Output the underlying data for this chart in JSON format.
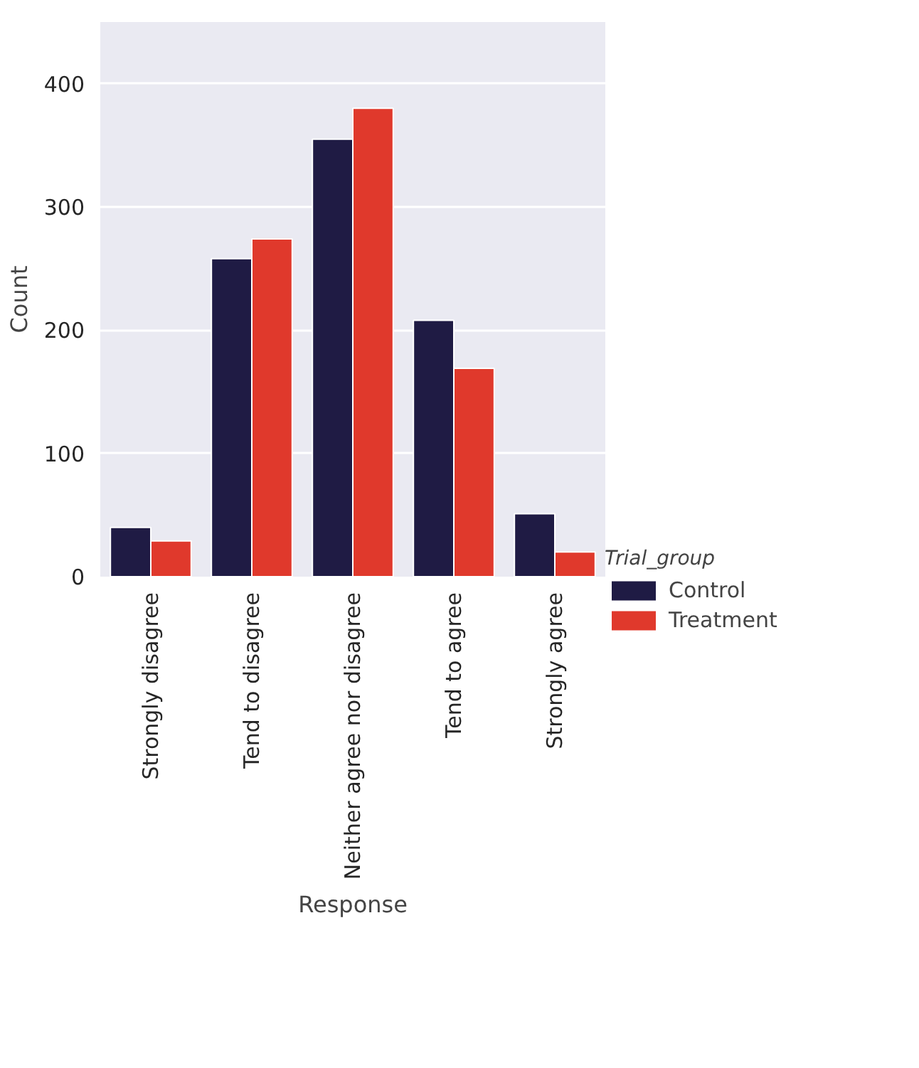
{
  "chart_data": {
    "type": "bar",
    "xlabel": "Response",
    "ylabel": "Count",
    "legend_title": "Trial_group",
    "categories": [
      "Strongly disagree",
      "Tend to disagree",
      "Neither agree nor disagree",
      "Tend to agree",
      "Strongly agree"
    ],
    "series": [
      {
        "name": "Control",
        "color": "#1f1b44",
        "values": [
          40,
          258,
          355,
          208,
          51
        ]
      },
      {
        "name": "Treatment",
        "color": "#e0392c",
        "values": [
          29,
          274,
          380,
          169,
          20
        ]
      }
    ],
    "ylim": [
      0,
      450
    ],
    "yticks": [
      0,
      100,
      200,
      300,
      400
    ],
    "grid": "y",
    "legend": "right"
  }
}
